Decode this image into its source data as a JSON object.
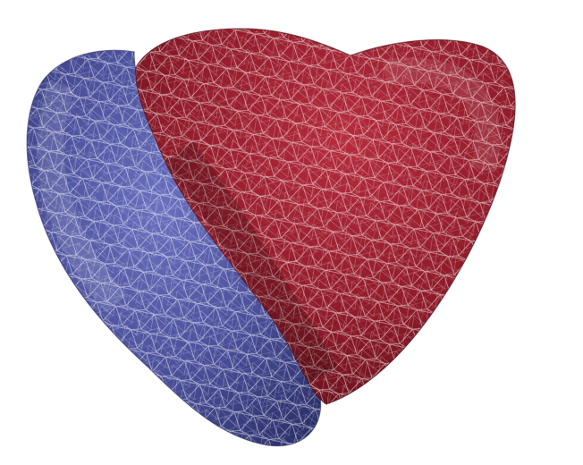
{
  "scene": {
    "background": "#ffffff",
    "objects": [
      {
        "id": "right-ventricle",
        "fill": "#4a4f9a",
        "fill_light": "#6a70bf",
        "fill_dark": "#2c306a",
        "wire": "#ffffff",
        "render_style": "triangulated-surface-mesh"
      },
      {
        "id": "left-ventricle",
        "fill": "#8e1a28",
        "fill_light": "#b52c3c",
        "fill_dark": "#5e0f19",
        "wire": "#ffffff",
        "render_style": "triangulated-surface-mesh"
      }
    ]
  }
}
